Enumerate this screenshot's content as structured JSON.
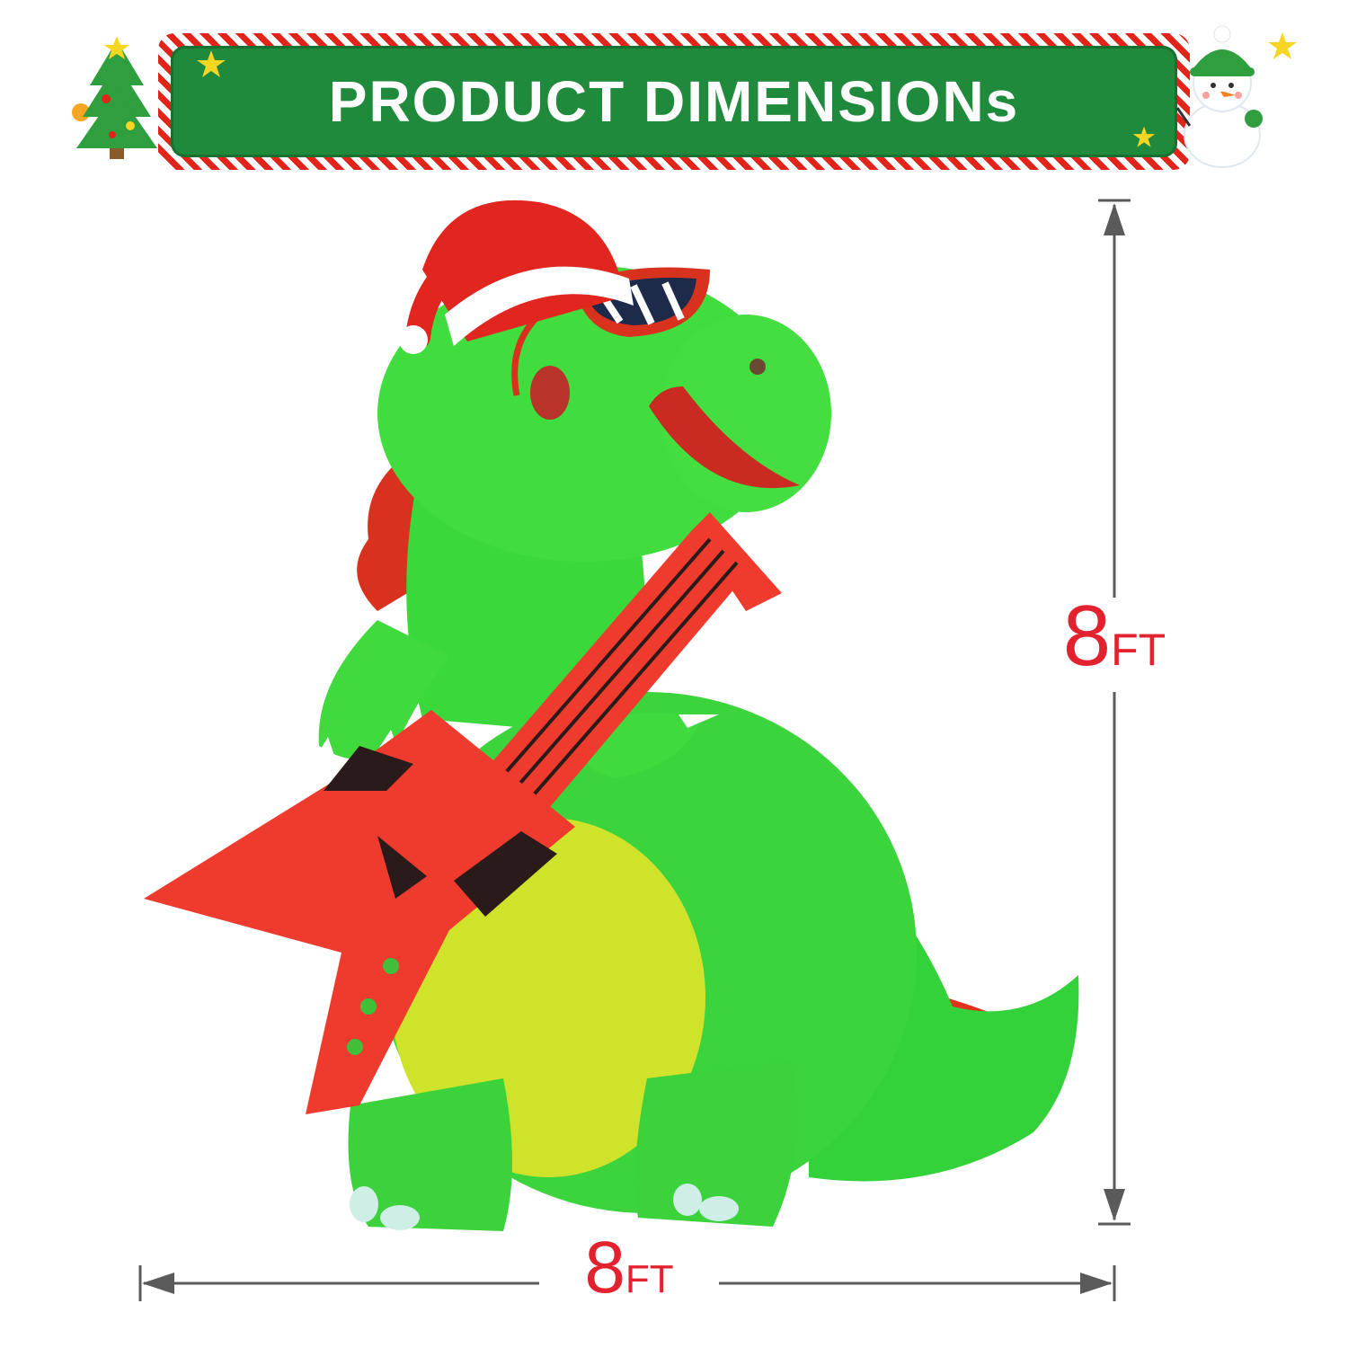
{
  "banner": {
    "title": "PRODUCT DIMENSIONs"
  },
  "dimensions": {
    "height": {
      "value": "8",
      "unit": "FT"
    },
    "width": {
      "value": "8",
      "unit": "FT"
    }
  },
  "colors": {
    "banner_green": "#1f8a3c",
    "stripe_red": "#e2231a",
    "dimension_red": "#e2232f",
    "dino_green": "#3fd93a",
    "belly_yellow": "#d8e62a",
    "guitar_red": "#ef3b2e",
    "arrow_gray": "#5a5a5a"
  },
  "icons": [
    "christmas-tree-icon",
    "snowman-icon",
    "star-icon"
  ]
}
